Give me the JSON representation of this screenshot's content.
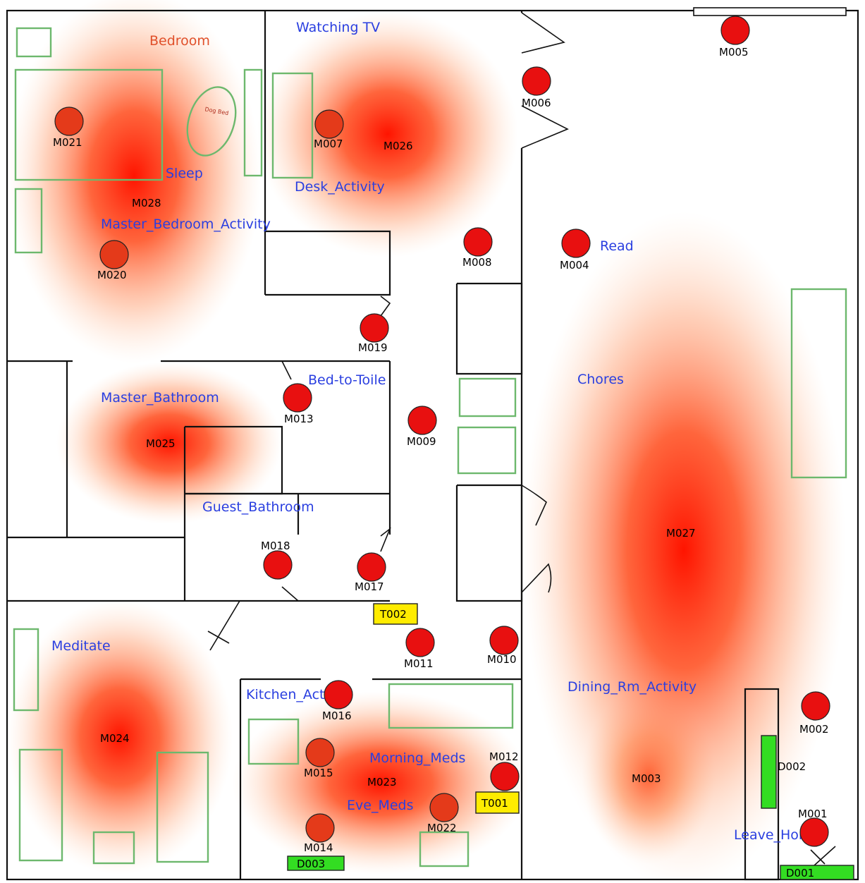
{
  "colors": {
    "room_label": "#2a3fe0",
    "bedroom_label": "#e0502a",
    "sensor_fill": "#e81010",
    "sensor_fill_dim": "#e43a1a",
    "temp_sensor": "#ffec00",
    "door_sensor": "#33dd22",
    "furniture": "#6db86d",
    "heat_core": "#ff1a00"
  },
  "labels": {
    "bedroom": "Bedroom",
    "watching_tv": "Watching TV",
    "sleep": "Sleep",
    "desk_activity": "Desk_Activity",
    "master_bedroom_activity": "Master_Bedroom_Activity",
    "read": "Read",
    "bed_to_toile": "Bed-to-Toile",
    "master_bathroom": "Master_Bathroom",
    "chores": "Chores",
    "guest_bathroom": "Guest_Bathroom",
    "meditate": "Meditate",
    "kitchen_activity": "Kitchen_Activity",
    "dining_rm_activity": "Dining_Rm_Activity",
    "morning_meds": "Morning_Meds",
    "eve_meds": "Eve_Meds",
    "leave_home": "Leave_Home",
    "dog_bed": "Dog Bed"
  },
  "motion_sensors": [
    {
      "id": "M001"
    },
    {
      "id": "M002"
    },
    {
      "id": "M004"
    },
    {
      "id": "M005"
    },
    {
      "id": "M006"
    },
    {
      "id": "M007"
    },
    {
      "id": "M008"
    },
    {
      "id": "M009"
    },
    {
      "id": "M010"
    },
    {
      "id": "M011"
    },
    {
      "id": "M012"
    },
    {
      "id": "M013"
    },
    {
      "id": "M014"
    },
    {
      "id": "M015"
    },
    {
      "id": "M016"
    },
    {
      "id": "M017"
    },
    {
      "id": "M018"
    },
    {
      "id": "M019"
    },
    {
      "id": "M020"
    },
    {
      "id": "M021"
    },
    {
      "id": "M022"
    }
  ],
  "area_sensors": [
    {
      "id": "M003"
    },
    {
      "id": "M023"
    },
    {
      "id": "M024"
    },
    {
      "id": "M025"
    },
    {
      "id": "M026"
    },
    {
      "id": "M027"
    },
    {
      "id": "M028"
    }
  ],
  "temperature_sensors": [
    {
      "id": "T001"
    },
    {
      "id": "T002"
    }
  ],
  "door_sensors": [
    {
      "id": "D001"
    },
    {
      "id": "D002"
    },
    {
      "id": "D003"
    }
  ]
}
